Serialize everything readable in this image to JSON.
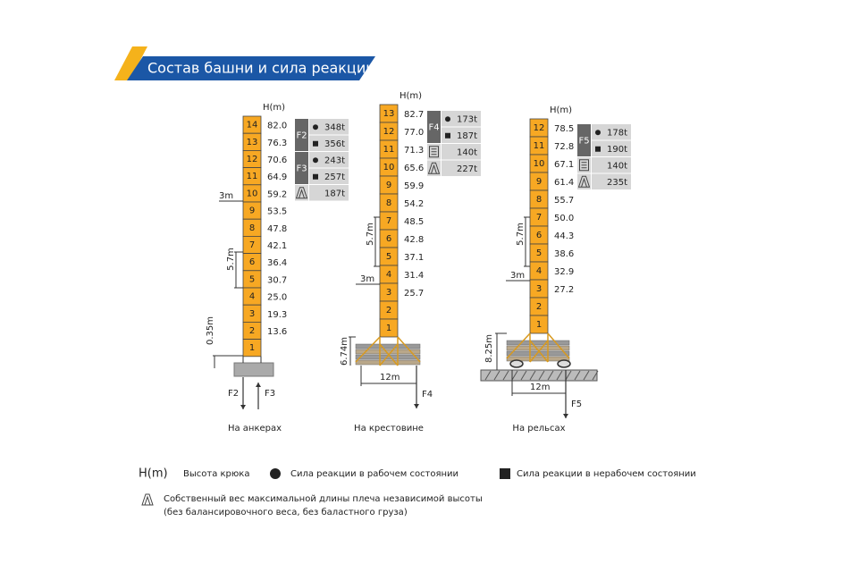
{
  "title": "Состав башни и сила реакции",
  "towers": [
    {
      "h_label": "H(m)",
      "sections": [
        "14",
        "13",
        "12",
        "11",
        "10",
        "9",
        "8",
        "7",
        "6",
        "5",
        "4",
        "3",
        "2",
        "1"
      ],
      "heights": [
        "82.0",
        "76.3",
        "70.6",
        "64.9",
        "59.2",
        "53.5",
        "47.8",
        "42.1",
        "36.4",
        "30.7",
        "25.0",
        "19.3",
        "13.6"
      ],
      "forces": [
        {
          "label": "F2",
          "working": "348t",
          "nonworking": "356t"
        },
        {
          "label": "F3",
          "working": "243t",
          "nonworking": "257t"
        }
      ],
      "self_weight": "187t",
      "dims": [
        "3m",
        "5.7m",
        "0.35m"
      ],
      "arrows": [
        "F2",
        "F3"
      ],
      "caption": "На анкерах"
    },
    {
      "h_label": "H(m)",
      "sections": [
        "13",
        "12",
        "11",
        "10",
        "9",
        "8",
        "7",
        "6",
        "5",
        "4",
        "3",
        "2",
        "1"
      ],
      "heights": [
        "82.7",
        "77.0",
        "71.3",
        "65.6",
        "59.9",
        "54.2",
        "48.5",
        "42.8",
        "37.1",
        "31.4",
        "25.7"
      ],
      "forces": [
        {
          "label": "F4",
          "working": "173t",
          "nonworking": "187t"
        }
      ],
      "ballast": "140t",
      "self_weight": "227t",
      "dims": [
        "5.7m",
        "3m",
        "6.74m",
        "12m"
      ],
      "arrows": [
        "F4"
      ],
      "caption": "На крестовине"
    },
    {
      "h_label": "H(m)",
      "sections": [
        "12",
        "11",
        "10",
        "9",
        "8",
        "7",
        "6",
        "5",
        "4",
        "3",
        "2",
        "1"
      ],
      "heights": [
        "78.5",
        "72.8",
        "67.1",
        "61.4",
        "55.7",
        "50.0",
        "44.3",
        "38.6",
        "32.9",
        "27.2"
      ],
      "forces": [
        {
          "label": "F5",
          "working": "178t",
          "nonworking": "190t"
        }
      ],
      "ballast": "140t",
      "self_weight": "235t",
      "dims": [
        "5.7m",
        "3m",
        "8.25m",
        "12m"
      ],
      "arrows": [
        "F5"
      ],
      "caption": "На рельсах"
    }
  ],
  "legend": {
    "h_label": "H(m)",
    "hook_height": "Высота крюка",
    "working": "Сила реакции в рабочем состоянии",
    "nonworking": "Сила реакции в нерабочем состоянии",
    "self_weight_line1": "Собственный вес максимальной длины плеча независимой высоты",
    "self_weight_line2": "(без балансировочного веса, без баластного груза)"
  }
}
